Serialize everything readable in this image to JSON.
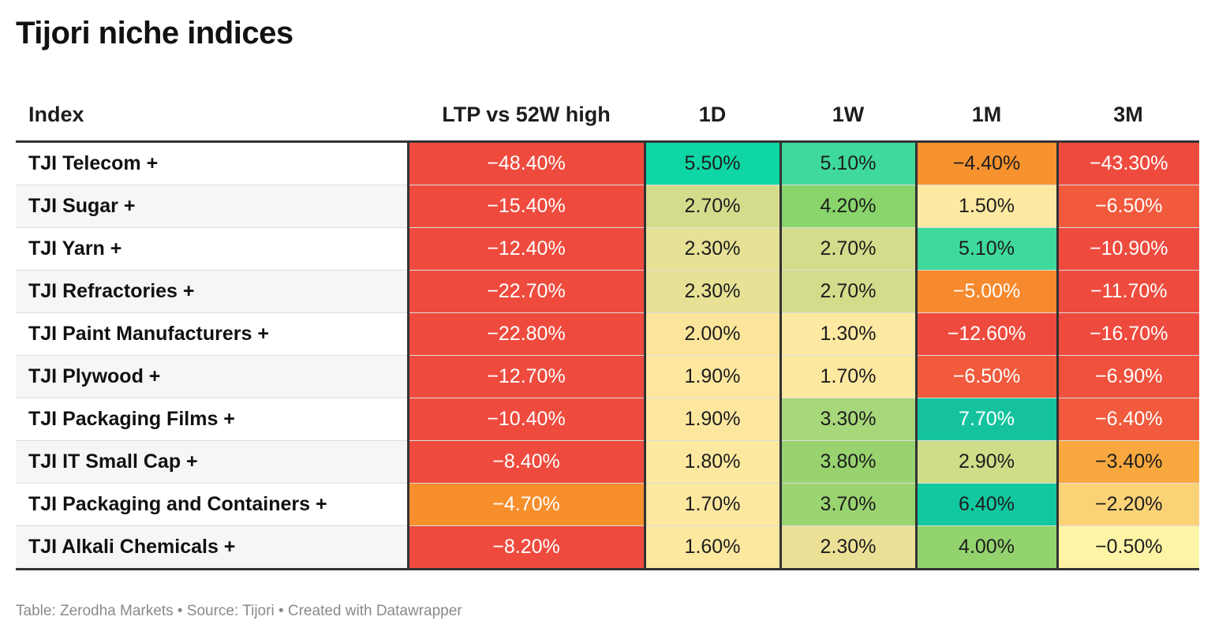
{
  "title": "Tijori niche indices",
  "footer": "Table: Zerodha Markets • Source: Tijori • Created with Datawrapper",
  "chart_data": {
    "type": "table",
    "title": "Tijori niche indices",
    "columns": [
      "Index",
      "LTP vs 52W high",
      "1D",
      "1W",
      "1M",
      "3M"
    ],
    "rows": [
      {
        "name": "TJI Telecom +",
        "values": [
          "−48.40%",
          "5.50%",
          "5.10%",
          "−4.40%",
          "−43.30%"
        ],
        "colors": [
          "#ee4b3e",
          "#0ed6a5",
          "#3fd99c",
          "#f7932f",
          "#ee4b3e"
        ],
        "light": [
          true,
          false,
          false,
          false,
          true
        ]
      },
      {
        "name": "TJI Sugar +",
        "values": [
          "−15.40%",
          "2.70%",
          "4.20%",
          "1.50%",
          "−6.50%"
        ],
        "colors": [
          "#ee4b3e",
          "#d3dc8b",
          "#89d46b",
          "#fde9a1",
          "#f15a3c"
        ],
        "light": [
          true,
          false,
          false,
          false,
          true
        ]
      },
      {
        "name": "TJI Yarn +",
        "values": [
          "−12.40%",
          "2.30%",
          "2.70%",
          "5.10%",
          "−10.90%"
        ],
        "colors": [
          "#ee4b3e",
          "#e6e195",
          "#d3dc8b",
          "#3fd99c",
          "#ee4b3e"
        ],
        "light": [
          true,
          false,
          false,
          false,
          true
        ]
      },
      {
        "name": "TJI Refractories +",
        "values": [
          "−22.70%",
          "2.30%",
          "2.70%",
          "−5.00%",
          "−11.70%"
        ],
        "colors": [
          "#ee4b3e",
          "#e6e195",
          "#d3dc8b",
          "#f7892e",
          "#ee4b3e"
        ],
        "light": [
          true,
          false,
          false,
          true,
          true
        ]
      },
      {
        "name": "TJI Paint Manufacturers +",
        "values": [
          "−22.80%",
          "2.00%",
          "1.30%",
          "−12.60%",
          "−16.70%"
        ],
        "colors": [
          "#ee4b3e",
          "#fbe59b",
          "#fde9a1",
          "#ee4b3e",
          "#ee4b3e"
        ],
        "light": [
          true,
          false,
          false,
          true,
          true
        ]
      },
      {
        "name": "TJI Plywood +",
        "values": [
          "−12.70%",
          "1.90%",
          "1.70%",
          "−6.50%",
          "−6.90%"
        ],
        "colors": [
          "#ee4b3e",
          "#fde79f",
          "#fde8a0",
          "#f15a3c",
          "#ef513c"
        ],
        "light": [
          true,
          false,
          false,
          true,
          true
        ]
      },
      {
        "name": "TJI Packaging Films +",
        "values": [
          "−10.40%",
          "1.90%",
          "3.30%",
          "7.70%",
          "−6.40%"
        ],
        "colors": [
          "#ee4b3e",
          "#fde79f",
          "#a7d77a",
          "#14c39e",
          "#f15a3c"
        ],
        "light": [
          true,
          false,
          false,
          true,
          true
        ]
      },
      {
        "name": "TJI IT Small Cap +",
        "values": [
          "−8.40%",
          "1.80%",
          "3.80%",
          "2.90%",
          "−3.40%"
        ],
        "colors": [
          "#ee4b3e",
          "#fde8a0",
          "#98d36f",
          "#cfdc88",
          "#f9a83f"
        ],
        "light": [
          true,
          false,
          false,
          false,
          false
        ]
      },
      {
        "name": "TJI Packaging and Containers +",
        "values": [
          "−4.70%",
          "1.70%",
          "3.70%",
          "6.40%",
          "−2.20%"
        ],
        "colors": [
          "#f88f2d",
          "#fde8a0",
          "#9ad470",
          "#12c8a0",
          "#fcd277"
        ],
        "light": [
          true,
          false,
          false,
          false,
          false
        ]
      },
      {
        "name": "TJI Alkali Chemicals +",
        "values": [
          "−8.20%",
          "1.60%",
          "2.30%",
          "4.00%",
          "−0.50%"
        ],
        "colors": [
          "#ee4b3e",
          "#fde8a0",
          "#ece097",
          "#93d36e",
          "#fdf4a6"
        ],
        "light": [
          true,
          false,
          false,
          false,
          false
        ]
      }
    ]
  }
}
